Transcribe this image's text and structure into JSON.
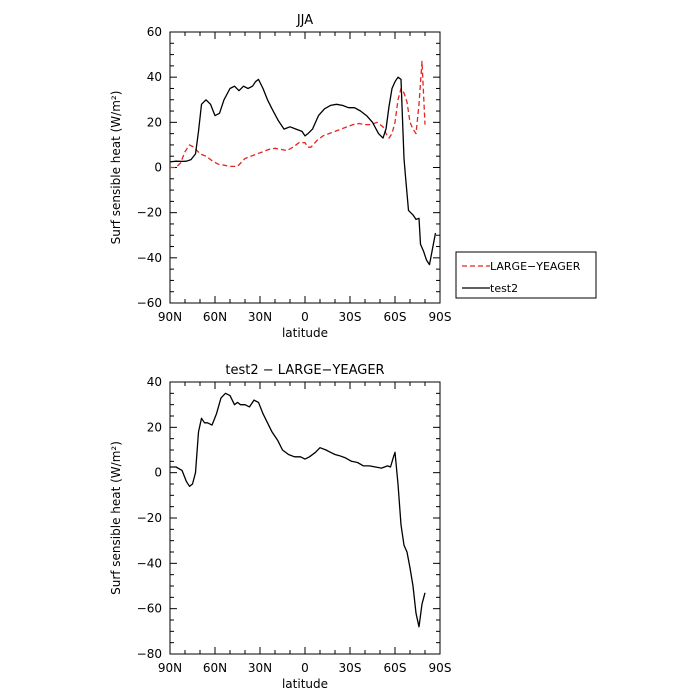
{
  "chart_data": [
    {
      "type": "line",
      "title": "JJA",
      "xlabel": "latitude",
      "ylabel": "Surf sensible heat (W/m²)",
      "xlim": [
        90,
        -90
      ],
      "ylim": [
        -60,
        60
      ],
      "xticks": [
        90,
        60,
        30,
        0,
        -30,
        -60,
        -90
      ],
      "xtick_labels": [
        "90N",
        "60N",
        "30N",
        "0",
        "30S",
        "60S",
        "90S"
      ],
      "yticks": [
        -60,
        -40,
        -20,
        0,
        20,
        40,
        60
      ],
      "ytick_labels": [
        "−60",
        "−40",
        "−20",
        "0",
        "20",
        "40",
        "60"
      ],
      "legend": "right",
      "series": [
        {
          "name": "LARGE−YEAGER",
          "color": "#e8231e",
          "dash": true,
          "x": [
            90,
            86,
            83,
            80,
            77,
            74,
            70,
            66,
            62,
            58,
            54,
            50,
            45,
            40,
            36,
            32,
            28,
            24,
            20,
            16,
            12,
            8,
            4,
            0,
            -2,
            -4,
            -8,
            -12,
            -16,
            -20,
            -24,
            -28,
            -32,
            -36,
            -40,
            -44,
            -48,
            -52,
            -54,
            -56,
            -58,
            -60,
            -62,
            -64,
            -66,
            -68,
            -70,
            -72,
            -74,
            -76,
            -78,
            -80
          ],
          "y": [
            0,
            0,
            2,
            7,
            10,
            9,
            6,
            5,
            3,
            1.5,
            1,
            0.5,
            0.5,
            4,
            5,
            6,
            7,
            8,
            8.5,
            8,
            7.5,
            9,
            11,
            11,
            9,
            9,
            12,
            14,
            15,
            16,
            17,
            18,
            19,
            19.5,
            19,
            19,
            20,
            18,
            15,
            13,
            15,
            20,
            30,
            35,
            33,
            29,
            20,
            17,
            15,
            28,
            47,
            19
          ]
        },
        {
          "name": "test2",
          "color": "#000000",
          "dash": false,
          "x": [
            90,
            86,
            82,
            79,
            76,
            73,
            71,
            69,
            66,
            63,
            60,
            57,
            54,
            50,
            47,
            44,
            41,
            38,
            35,
            33,
            31,
            28,
            25,
            22,
            18,
            14,
            10,
            6,
            2,
            0,
            -2,
            -5,
            -9,
            -13,
            -17,
            -21,
            -25,
            -29,
            -33,
            -37,
            -41,
            -45,
            -49,
            -52,
            -54,
            -56,
            -58,
            -60,
            -62,
            -64,
            -66,
            -67,
            -69,
            -72,
            -74,
            -76,
            -77,
            -79,
            -81,
            -83,
            -85,
            -87
          ],
          "y": [
            2.5,
            2.8,
            2.7,
            2.8,
            3.5,
            6,
            16,
            28,
            30,
            28,
            23,
            24,
            30,
            35,
            36,
            34,
            36,
            35,
            36,
            38,
            39,
            35,
            30,
            26,
            21,
            17,
            18,
            17,
            16,
            14,
            15,
            17,
            23,
            26,
            27.5,
            28,
            27.5,
            26.5,
            26.5,
            25,
            23,
            20,
            15,
            13,
            17,
            27,
            35,
            38,
            40,
            39,
            4,
            -4,
            -19,
            -21,
            -23,
            -22.5,
            -34,
            -37,
            -41,
            -43,
            -36,
            -29
          ]
        }
      ]
    },
    {
      "type": "line",
      "title": "test2 − LARGE−YEAGER",
      "xlabel": "latitude",
      "ylabel": "Surf sensible heat (W/m²)",
      "xlim": [
        90,
        -90
      ],
      "ylim": [
        -80,
        40
      ],
      "xticks": [
        90,
        60,
        30,
        0,
        -30,
        -60,
        -90
      ],
      "xtick_labels": [
        "90N",
        "60N",
        "30N",
        "0",
        "30S",
        "60S",
        "90S"
      ],
      "yticks": [
        -80,
        -60,
        -40,
        -20,
        0,
        20,
        40
      ],
      "ytick_labels": [
        "−80",
        "−60",
        "−40",
        "−20",
        "0",
        "20",
        "40"
      ],
      "series": [
        {
          "color": "#000000",
          "dash": false,
          "x": [
            90,
            86,
            82,
            79,
            77,
            75,
            73,
            71,
            69,
            67,
            65,
            62,
            59,
            56,
            53,
            50,
            47,
            45,
            43,
            40,
            37,
            34,
            31,
            28,
            25,
            22,
            18,
            15,
            11,
            7,
            3,
            0,
            -3,
            -7,
            -10,
            -14,
            -17,
            -20,
            -23,
            -27,
            -31,
            -35,
            -39,
            -43,
            -47,
            -51,
            -55,
            -57,
            -59,
            -60,
            -62,
            -64,
            -66,
            -68,
            -70,
            -72,
            -74,
            -76,
            -78,
            -80
          ],
          "y": [
            2.5,
            2.5,
            1,
            -4,
            -6,
            -5,
            0,
            18,
            24,
            22,
            22,
            21,
            26,
            33,
            35,
            34,
            30,
            31,
            30,
            30,
            29,
            32,
            31,
            26,
            22,
            18,
            14,
            10,
            8,
            7,
            7,
            6,
            7,
            9,
            11,
            10,
            9,
            8,
            7.5,
            6.5,
            5,
            4.5,
            3,
            3,
            2.5,
            2,
            3,
            2.5,
            7,
            9,
            -5,
            -23,
            -32,
            -35,
            -42,
            -50,
            -62,
            -68,
            -58,
            -53
          ]
        }
      ]
    }
  ]
}
